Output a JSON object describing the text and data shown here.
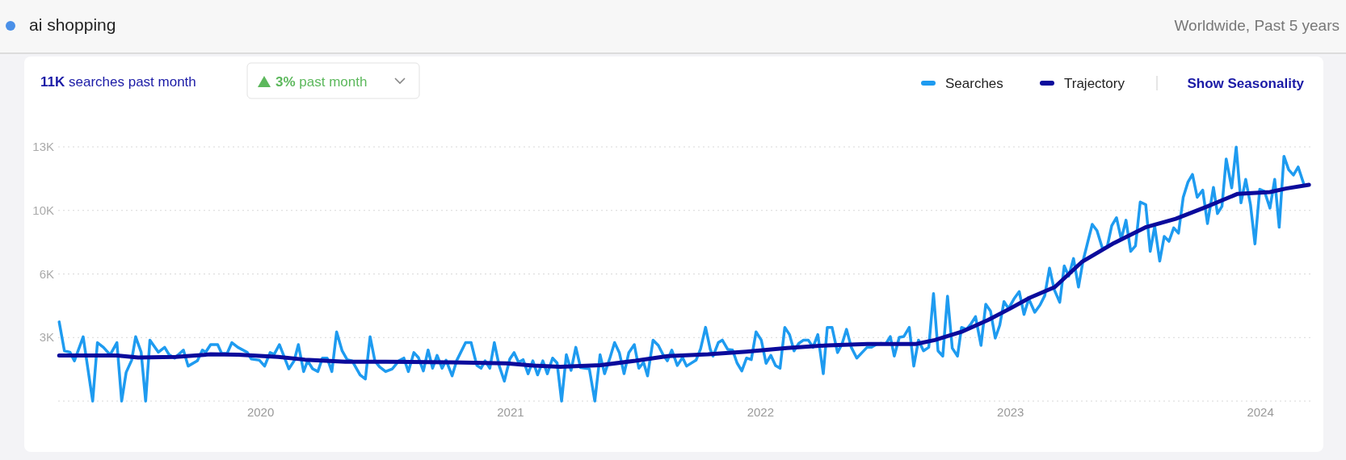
{
  "chart_data": {
    "type": "line",
    "title": "ai shopping",
    "subtitle": "Worldwide, Past 5 years",
    "annotations": [
      "11K searches past month",
      "3% past month",
      "Show Seasonality"
    ],
    "xlim": [
      2019.19,
      2024.2
    ],
    "xticks": [
      2020,
      2021,
      2022,
      2023,
      2024
    ],
    "ylim": [
      0,
      13000
    ],
    "yticks": [
      {
        "value": 0,
        "label": null
      },
      {
        "value": 3250,
        "label": "3K"
      },
      {
        "value": 6500,
        "label": "6K"
      },
      {
        "value": 9750,
        "label": "10K"
      },
      {
        "value": 13000,
        "label": "13K"
      }
    ],
    "grid": "y",
    "legend": "top right",
    "line_style": "solid",
    "marker": "none",
    "series": [
      {
        "name": "Searches",
        "color": "#1e9bf0",
        "x": [
          2019.194,
          2019.215,
          2019.237,
          2019.255,
          2019.29,
          2019.328,
          2019.347,
          2019.371,
          2019.398,
          2019.425,
          2019.444,
          2019.462,
          2019.484,
          2019.5,
          2019.522,
          2019.54,
          2019.557,
          2019.591,
          2019.616,
          2019.634,
          2019.656,
          2019.691,
          2019.71,
          2019.747,
          2019.767,
          2019.78,
          2019.8,
          2019.828,
          2019.844,
          2019.866,
          2019.885,
          2019.909,
          2019.946,
          2019.962,
          2019.995,
          2020.016,
          2020.038,
          2020.054,
          2020.075,
          2020.113,
          2020.134,
          2020.151,
          2020.172,
          2020.188,
          2020.208,
          2020.229,
          2020.247,
          2020.266,
          2020.285,
          2020.304,
          2020.326,
          2020.346,
          2020.366,
          2020.398,
          2020.419,
          2020.438,
          2020.457,
          2020.476,
          2020.5,
          2020.527,
          2020.553,
          2020.573,
          2020.591,
          2020.613,
          2020.631,
          2020.651,
          2020.67,
          2020.688,
          2020.706,
          2020.726,
          2020.742,
          2020.766,
          2020.785,
          2020.82,
          2020.842,
          2020.865,
          2020.882,
          2020.898,
          2020.917,
          2020.935,
          2020.954,
          2020.975,
          2020.997,
          2021.014,
          2021.032,
          2021.05,
          2021.07,
          2021.089,
          2021.108,
          2021.129,
          2021.147,
          2021.168,
          2021.186,
          2021.204,
          2021.223,
          2021.242,
          2021.261,
          2021.28,
          2021.315,
          2021.337,
          2021.358,
          2021.376,
          2021.398,
          2021.416,
          2021.435,
          2021.454,
          2021.473,
          2021.495,
          2021.513,
          2021.532,
          2021.548,
          2021.57,
          2021.591,
          2021.61,
          2021.627,
          2021.645,
          2021.667,
          2021.688,
          2021.704,
          2021.742,
          2021.76,
          2021.78,
          2021.799,
          2021.81,
          2021.831,
          2021.847,
          2021.869,
          2021.888,
          2021.906,
          2021.925,
          2021.944,
          2021.963,
          2021.982,
          2022.003,
          2022.022,
          2022.041,
          2022.06,
          2022.078,
          2022.097,
          2022.116,
          2022.134,
          2022.153,
          2022.172,
          2022.191,
          2022.21,
          2022.229,
          2022.251,
          2022.267,
          2022.286,
          2022.308,
          2022.326,
          2022.344,
          2022.363,
          2022.385,
          2022.406,
          2022.426,
          2022.444,
          2022.466,
          2022.482,
          2022.501,
          2022.519,
          2022.535,
          2022.555,
          2022.573,
          2022.595,
          2022.613,
          2022.632,
          2022.652,
          2022.673,
          2022.692,
          2022.71,
          2022.729,
          2022.748,
          2022.767,
          2022.788,
          2022.804,
          2022.824,
          2022.842,
          2022.86,
          2022.882,
          2022.901,
          2022.92,
          2022.939,
          2022.957,
          2022.974,
          2022.992,
          2023.014,
          2023.035,
          2023.054,
          2023.073,
          2023.097,
          2023.118,
          2023.137,
          2023.156,
          2023.175,
          2023.197,
          2023.215,
          2023.233,
          2023.252,
          2023.272,
          2023.29,
          2023.308,
          2023.327,
          2023.346,
          2023.368,
          2023.387,
          2023.405,
          2023.424,
          2023.443,
          2023.462,
          2023.481,
          2023.5,
          2023.519,
          2023.541,
          2023.559,
          2023.577,
          2023.597,
          2023.615,
          2023.634,
          2023.653,
          2023.672,
          2023.691,
          2023.71,
          2023.728,
          2023.747,
          2023.769,
          2023.788,
          2023.812,
          2023.828,
          2023.846,
          2023.863,
          2023.885,
          2023.903,
          2023.922,
          2023.941,
          2023.96,
          2023.978,
          2023.997,
          2024.016,
          2024.038,
          2024.057,
          2024.075,
          2024.094,
          2024.113,
          2024.132,
          2024.151,
          2024.172
        ],
        "values": [
          4050,
          2570,
          2500,
          2060,
          3290,
          0,
          2990,
          2750,
          2370,
          2990,
          0,
          1470,
          2090,
          3290,
          2500,
          0,
          3120,
          2500,
          2750,
          2370,
          2200,
          2610,
          1790,
          2060,
          2610,
          2500,
          2890,
          2890,
          2440,
          2440,
          2990,
          2750,
          2500,
          2160,
          2090,
          1790,
          2480,
          2390,
          2890,
          1650,
          2060,
          2890,
          1510,
          2060,
          1650,
          1510,
          2200,
          2200,
          1510,
          3540,
          2570,
          2120,
          2060,
          1340,
          1130,
          3290,
          2060,
          1750,
          1510,
          1650,
          2060,
          2200,
          1510,
          2480,
          2230,
          1540,
          2610,
          1680,
          2340,
          1680,
          2090,
          1290,
          2090,
          2990,
          2990,
          1820,
          1680,
          2060,
          1680,
          2990,
          1820,
          1020,
          2160,
          2480,
          1980,
          2120,
          1400,
          2060,
          1340,
          2060,
          1400,
          2200,
          1950,
          0,
          2370,
          1570,
          2750,
          1710,
          1650,
          0,
          2370,
          1400,
          2230,
          2990,
          2480,
          1400,
          2480,
          2890,
          1680,
          1980,
          1290,
          3120,
          2850,
          2370,
          2060,
          2610,
          1820,
          2230,
          1790,
          2090,
          2670,
          3770,
          2640,
          2300,
          2990,
          3120,
          2640,
          2610,
          1950,
          1540,
          2200,
          2120,
          3540,
          3120,
          1930,
          2340,
          1820,
          1680,
          3770,
          3400,
          2570,
          2950,
          3120,
          3120,
          2750,
          3400,
          1400,
          3770,
          3770,
          2480,
          2920,
          3670,
          2750,
          2200,
          2480,
          2750,
          2750,
          2920,
          2950,
          2920,
          3300,
          2300,
          3260,
          3300,
          3770,
          1790,
          3120,
          2570,
          2750,
          5500,
          2570,
          2300,
          5370,
          2710,
          2300,
          3770,
          3670,
          3950,
          4320,
          2850,
          4950,
          4600,
          3220,
          3880,
          5090,
          4730,
          5230,
          5600,
          4430,
          5230,
          4540,
          4910,
          5390,
          6800,
          5700,
          5050,
          6910,
          6390,
          7290,
          5830,
          7160,
          8080,
          9040,
          8720,
          7800,
          7900,
          8970,
          9380,
          8280,
          9250,
          7660,
          7940,
          10180,
          10050,
          7660,
          8940,
          7160,
          8420,
          8170,
          8860,
          8590,
          10420,
          11200,
          11590,
          10420,
          10790,
          9080,
          10930,
          9590,
          9960,
          12380,
          10900,
          12990,
          10140,
          11340,
          10050,
          8040,
          10830,
          10730,
          9870,
          11340,
          8890,
          12520,
          11830,
          11560,
          11970,
          11150
        ]
      },
      {
        "name": "Trajectory",
        "color": "#0b0b9c",
        "x": [
          2019.194,
          2019.425,
          2019.51,
          2019.66,
          2019.8,
          2019.91,
          2020.07,
          2020.177,
          2020.339,
          2020.5,
          2020.769,
          2020.984,
          2021.091,
          2021.199,
          2021.36,
          2021.5,
          2021.629,
          2021.79,
          2021.944,
          2022.105,
          2022.267,
          2022.428,
          2022.622,
          2022.697,
          2022.804,
          2022.912,
          2022.998,
          2023.073,
          2023.177,
          2023.285,
          2023.414,
          2023.543,
          2023.661,
          2023.779,
          2023.909,
          2024.038,
          2024.102,
          2024.194
        ],
        "values": [
          2330,
          2330,
          2230,
          2260,
          2390,
          2370,
          2260,
          2120,
          2010,
          2010,
          1980,
          1930,
          1820,
          1750,
          1840,
          2060,
          2300,
          2390,
          2530,
          2710,
          2850,
          2920,
          2920,
          3120,
          3540,
          4160,
          4730,
          5260,
          5830,
          7110,
          8080,
          8900,
          9320,
          9910,
          10600,
          10690,
          10870,
          11060
        ]
      }
    ]
  }
}
